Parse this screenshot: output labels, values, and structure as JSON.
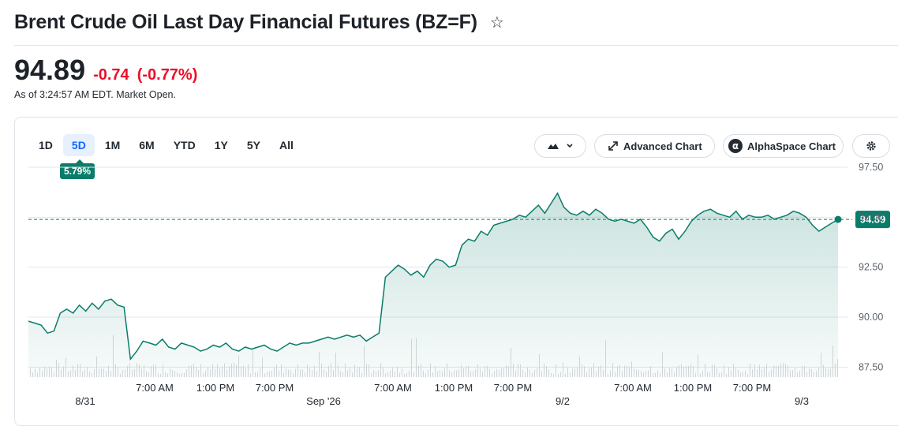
{
  "header": {
    "title": "Brent Crude Oil Last Day Financial Futures (BZ=F)",
    "price": "94.89",
    "change": "-0.74",
    "change_percent": "(-0.77%)",
    "as_of": "As of 3:24:57 AM EDT. Market Open."
  },
  "toolbar": {
    "ranges": [
      "1D",
      "5D",
      "1M",
      "6M",
      "YTD",
      "1Y",
      "5Y",
      "All"
    ],
    "active_range": "5D",
    "performance_badge": "5.79%",
    "advanced_chart_label": "Advanced Chart",
    "alphaspace_label": "AlphaSpace Chart"
  },
  "colors": {
    "accent": "#0a7c6a",
    "negative": "#eb0f29",
    "active_tab": "#0f69ff"
  },
  "chart_data": {
    "type": "area",
    "ylim": [
      87.0,
      97.5
    ],
    "y_ticks": [
      "97.50",
      "95.00",
      "92.50",
      "90.00",
      "87.50"
    ],
    "y_tick_values": [
      97.5,
      95.0,
      92.5,
      90.0,
      87.5
    ],
    "x_tick_labels": [
      "8/31",
      "7:00 AM",
      "1:00 PM",
      "7:00 PM",
      "Sep '26",
      "7:00 AM",
      "1:00 PM",
      "7:00 PM",
      "9/2",
      "7:00 AM",
      "1:00 PM",
      "7:00 PM",
      "9/3"
    ],
    "last_price_label": "94.89",
    "last_price": 94.89,
    "series": [
      {
        "values": [
          89.8,
          89.7,
          89.6,
          89.2,
          89.3,
          90.2,
          90.4,
          90.2,
          90.6,
          90.3,
          90.7,
          90.4,
          90.8,
          90.9,
          90.6,
          90.5,
          87.9,
          88.3,
          88.8,
          88.7,
          88.6,
          88.9,
          88.5,
          88.4,
          88.7,
          88.6,
          88.5,
          88.3,
          88.4,
          88.6,
          88.5,
          88.7,
          88.4,
          88.3,
          88.5,
          88.4,
          88.5,
          88.6,
          88.4,
          88.3,
          88.5,
          88.7,
          88.6,
          88.7,
          88.7,
          88.8,
          88.9,
          89.0,
          88.9,
          89.0,
          89.1,
          89.0,
          89.1,
          88.8,
          89.0,
          89.2,
          92.0,
          92.3,
          92.6,
          92.4,
          92.1,
          92.3,
          92.0,
          92.6,
          92.9,
          92.8,
          92.5,
          92.6,
          93.6,
          93.9,
          93.8,
          94.3,
          94.1,
          94.6,
          94.7,
          94.8,
          94.9,
          95.1,
          95.0,
          95.3,
          95.6,
          95.2,
          95.7,
          96.2,
          95.5,
          95.2,
          95.1,
          95.3,
          95.1,
          95.4,
          95.2,
          94.9,
          94.8,
          94.9,
          94.8,
          94.7,
          94.9,
          94.5,
          94.0,
          93.8,
          94.2,
          94.4,
          93.9,
          94.3,
          94.8,
          95.1,
          95.3,
          95.4,
          95.2,
          95.1,
          95.0,
          95.3,
          94.9,
          95.1,
          95.0,
          95.0,
          95.1,
          94.9,
          95.0,
          95.1,
          95.3,
          95.2,
          95.0,
          94.6,
          94.3,
          94.5,
          94.7,
          94.89
        ]
      }
    ]
  }
}
